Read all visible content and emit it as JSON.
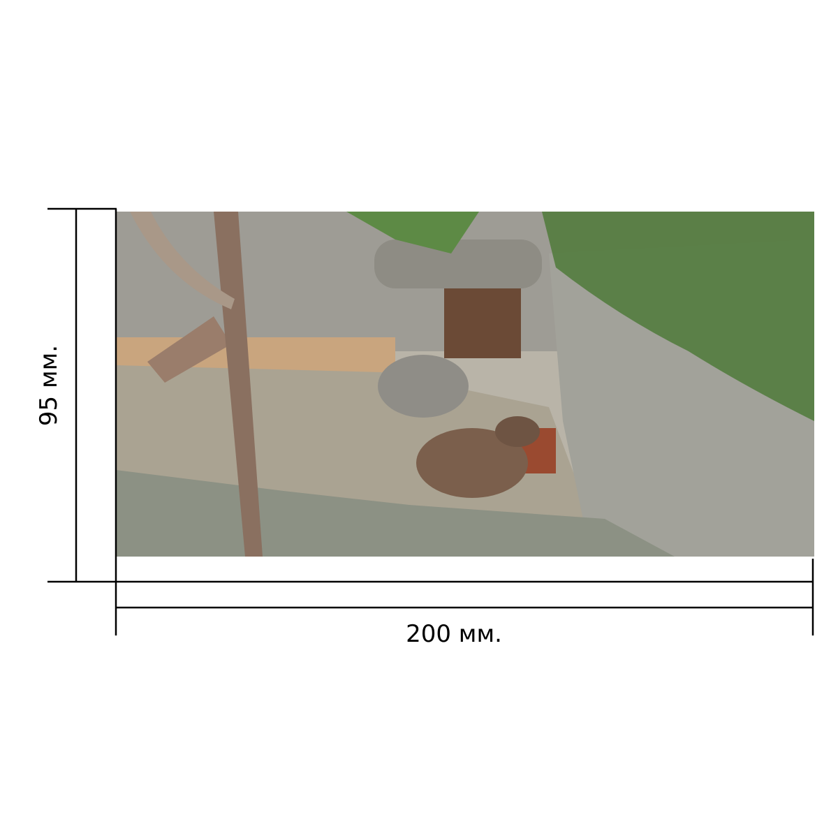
{
  "dimensions": {
    "width_label": "200 мм.",
    "height_label": "95 мм."
  },
  "photo": {
    "subject": "capybara",
    "colors": {
      "rock": "#a9a8a0",
      "ground": "#b8ad98",
      "foliage": "#4f7a3a",
      "sand": "#c9a57e",
      "tree": "#8a7060",
      "container": "#9a4a30"
    }
  }
}
